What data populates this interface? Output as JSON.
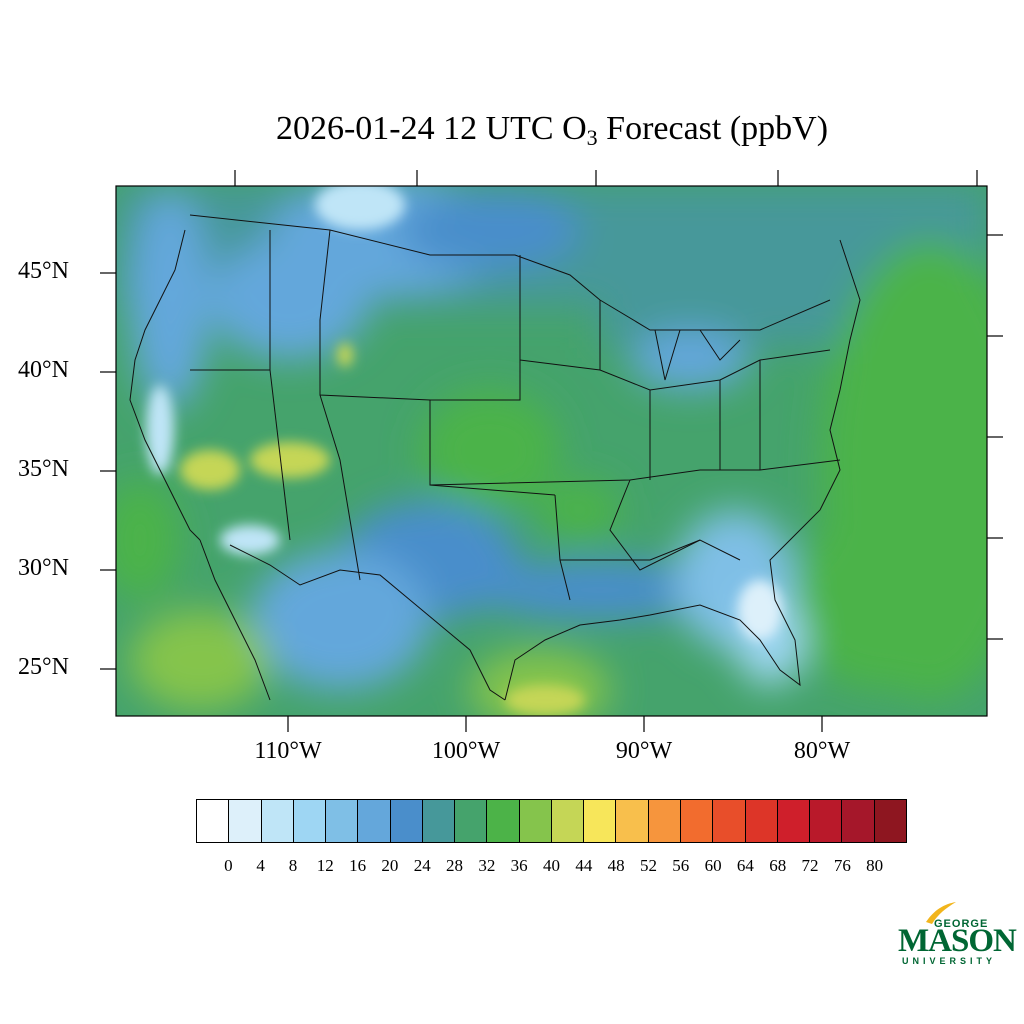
{
  "title": {
    "date_time": "2026-01-24 12 UTC O",
    "subscript": "3",
    "rest": " Forecast (ppbV)"
  },
  "map": {
    "region": "Continental United States",
    "variable": "O3",
    "units": "ppbV",
    "lat_labels": [
      "45°N",
      "40°N",
      "35°N",
      "30°N",
      "25°N"
    ],
    "lon_labels": [
      "110°W",
      "100°W",
      "90°W",
      "80°W"
    ]
  },
  "colorbar": {
    "labels": [
      "0",
      "4",
      "8",
      "12",
      "16",
      "20",
      "24",
      "28",
      "32",
      "36",
      "40",
      "44",
      "48",
      "52",
      "56",
      "60",
      "64",
      "68",
      "72",
      "76",
      "80"
    ],
    "colors": [
      "#ffffff",
      "#ddf0fa",
      "#bfe5f7",
      "#9ed6f3",
      "#7fbfe6",
      "#64a7db",
      "#4a8ecb",
      "#46989a",
      "#45a36c",
      "#4cb348",
      "#85c44c",
      "#c5d656",
      "#f7e65a",
      "#f8bf4c",
      "#f6953d",
      "#f26c2e",
      "#e84e2a",
      "#dd3528",
      "#cf1f2b",
      "#b9192a",
      "#a5172a",
      "#8e1620"
    ]
  },
  "logo": {
    "top": "GEORGE",
    "main": "MASON",
    "bottom": "UNIVERSITY"
  }
}
